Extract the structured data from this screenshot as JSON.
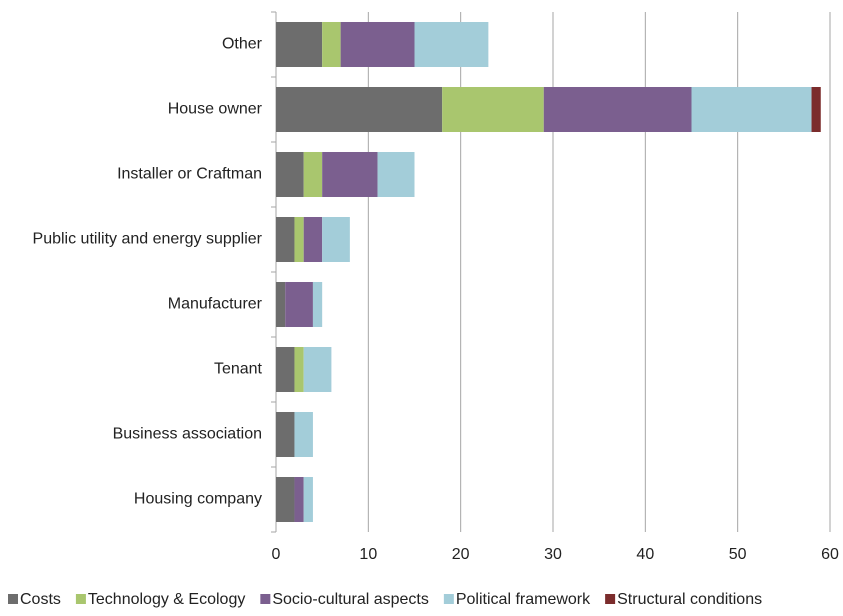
{
  "chart_data": {
    "type": "stacked-barh",
    "categories": [
      "Other",
      "House owner",
      "Installer or Craftman",
      "Public utility and energy supplier",
      "Manufacturer",
      "Tenant",
      "Business association",
      "Housing company"
    ],
    "series": [
      {
        "name": "Costs",
        "color": "#6d6d6d",
        "values": [
          5,
          18,
          3,
          2,
          1,
          2,
          2,
          2
        ]
      },
      {
        "name": "Technology & Ecology",
        "color": "#a9c66e",
        "values": [
          2,
          11,
          2,
          1,
          0,
          1,
          0,
          0
        ]
      },
      {
        "name": "Socio-cultural aspects",
        "color": "#7b5f8f",
        "values": [
          8,
          16,
          6,
          2,
          3,
          0,
          0,
          1
        ]
      },
      {
        "name": "Political framework",
        "color": "#a3cdd9",
        "values": [
          8,
          13,
          4,
          3,
          1,
          3,
          2,
          1
        ]
      },
      {
        "name": "Structural conditions",
        "color": "#7b2c2c",
        "values": [
          0,
          1,
          0,
          0,
          0,
          0,
          0,
          0
        ]
      }
    ],
    "xlim": [
      0,
      60
    ],
    "xticks": [
      0,
      10,
      20,
      30,
      40,
      50,
      60
    ],
    "grid": true,
    "legend": "bottom"
  }
}
